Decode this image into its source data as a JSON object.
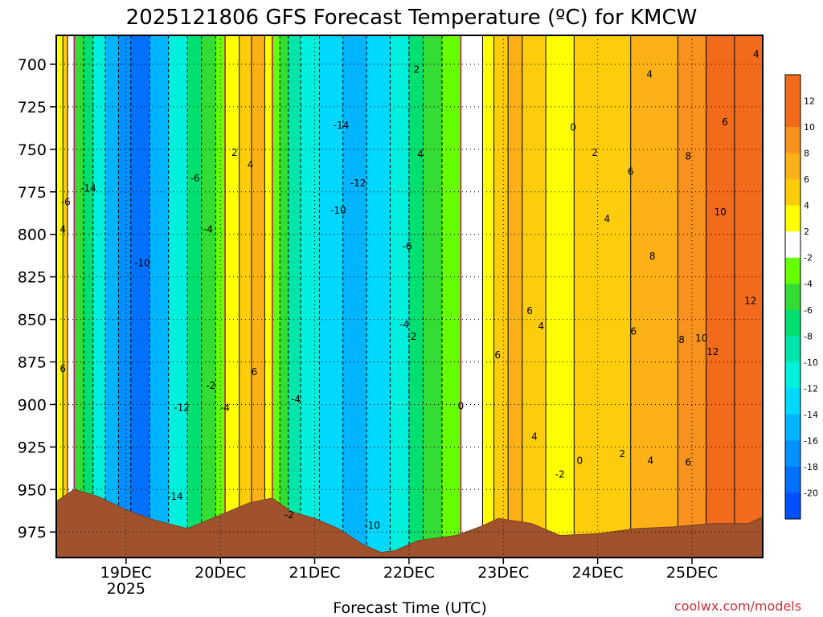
{
  "chart_data": {
    "type": "heatmap",
    "title": "2025121806 GFS Forecast Temperature (ºC) for KMCW",
    "xlabel": "Forecast Time (UTC)",
    "ylabel": "",
    "credit": "coolwx.com/models",
    "y_axis": {
      "reversed": true,
      "ylim": [
        990,
        683
      ],
      "ticks": [
        700,
        725,
        750,
        775,
        800,
        825,
        850,
        875,
        900,
        925,
        950,
        975
      ]
    },
    "x_axis": {
      "xlim": [
        18.26,
        25.75
      ],
      "ticks": [
        {
          "value": 19,
          "label": "19DEC",
          "sublabel": "2025"
        },
        {
          "value": 20,
          "label": "20DEC",
          "sublabel": ""
        },
        {
          "value": 21,
          "label": "21DEC",
          "sublabel": ""
        },
        {
          "value": 22,
          "label": "22DEC",
          "sublabel": ""
        },
        {
          "value": 23,
          "label": "23DEC",
          "sublabel": ""
        },
        {
          "value": 24,
          "label": "24DEC",
          "sublabel": ""
        },
        {
          "value": 25,
          "label": "25DEC",
          "sublabel": ""
        }
      ]
    },
    "grid": true,
    "colorbar": {
      "placement": "right",
      "bins": [
        {
          "label": "12",
          "color": "#f26b1d"
        },
        {
          "label": "10",
          "color": "#f7921e"
        },
        {
          "label": "8",
          "color": "#fcb116"
        },
        {
          "label": "6",
          "color": "#fdcc0b"
        },
        {
          "label": "4",
          "color": "#ffff00"
        },
        {
          "label": "2",
          "color": "#ffffff"
        },
        {
          "label": "-2",
          "color": "#66ff00"
        },
        {
          "label": "-4",
          "color": "#33dd33"
        },
        {
          "label": "-6",
          "color": "#00e070"
        },
        {
          "label": "-8",
          "color": "#00e5aa"
        },
        {
          "label": "-10",
          "color": "#00f0dd"
        },
        {
          "label": "-12",
          "color": "#00d8ff"
        },
        {
          "label": "-14",
          "color": "#00b4ff"
        },
        {
          "label": "-16",
          "color": "#0090ff"
        },
        {
          "label": "-18",
          "color": "#0070ff"
        },
        {
          "label": "-20",
          "color": ""
        }
      ],
      "top_color": "#f26b1d",
      "bottom_color": "#0050ff"
    },
    "terrain_surface_hpa": [
      {
        "x": 18.26,
        "p": 957
      },
      {
        "x": 18.45,
        "p": 950
      },
      {
        "x": 18.7,
        "p": 954
      },
      {
        "x": 19.0,
        "p": 962
      },
      {
        "x": 19.3,
        "p": 968
      },
      {
        "x": 19.65,
        "p": 973
      },
      {
        "x": 20.0,
        "p": 965
      },
      {
        "x": 20.3,
        "p": 958
      },
      {
        "x": 20.55,
        "p": 955
      },
      {
        "x": 20.75,
        "p": 963
      },
      {
        "x": 21.0,
        "p": 967
      },
      {
        "x": 21.25,
        "p": 973
      },
      {
        "x": 21.5,
        "p": 982
      },
      {
        "x": 21.7,
        "p": 987
      },
      {
        "x": 21.85,
        "p": 986
      },
      {
        "x": 22.1,
        "p": 980
      },
      {
        "x": 22.5,
        "p": 977
      },
      {
        "x": 22.75,
        "p": 972
      },
      {
        "x": 22.95,
        "p": 967
      },
      {
        "x": 23.3,
        "p": 970
      },
      {
        "x": 23.6,
        "p": 977
      },
      {
        "x": 24.0,
        "p": 976
      },
      {
        "x": 24.4,
        "p": 973
      },
      {
        "x": 24.8,
        "p": 972
      },
      {
        "x": 25.2,
        "p": 970
      },
      {
        "x": 25.6,
        "p": 970
      },
      {
        "x": 25.75,
        "p": 966
      }
    ],
    "temperature_bands": [
      {
        "x": 18.26,
        "v": 4
      },
      {
        "x": 18.33,
        "v": 6
      },
      {
        "x": 18.38,
        "v": 2
      },
      {
        "x": 18.45,
        "v": -4
      },
      {
        "x": 18.55,
        "v": -6
      },
      {
        "x": 18.65,
        "v": -10
      },
      {
        "x": 18.78,
        "v": -14
      },
      {
        "x": 18.92,
        "v": -16
      },
      {
        "x": 19.05,
        "v": -18
      },
      {
        "x": 19.25,
        "v": -14
      },
      {
        "x": 19.45,
        "v": -10
      },
      {
        "x": 19.65,
        "v": -6
      },
      {
        "x": 19.8,
        "v": -4
      },
      {
        "x": 19.95,
        "v": -2
      },
      {
        "x": 20.05,
        "v": 4
      },
      {
        "x": 20.2,
        "v": 6
      },
      {
        "x": 20.33,
        "v": 8
      },
      {
        "x": 20.47,
        "v": 4
      },
      {
        "x": 20.55,
        "v": -2
      },
      {
        "x": 20.63,
        "v": -4
      },
      {
        "x": 20.72,
        "v": -8
      },
      {
        "x": 20.85,
        "v": -10
      },
      {
        "x": 21.05,
        "v": -12
      },
      {
        "x": 21.3,
        "v": -14
      },
      {
        "x": 21.55,
        "v": -12
      },
      {
        "x": 21.8,
        "v": -10
      },
      {
        "x": 22.0,
        "v": -6
      },
      {
        "x": 22.15,
        "v": -4
      },
      {
        "x": 22.35,
        "v": -2
      },
      {
        "x": 22.55,
        "v": 2
      },
      {
        "x": 22.78,
        "v": 4
      },
      {
        "x": 22.9,
        "v": 6
      },
      {
        "x": 23.05,
        "v": 8
      },
      {
        "x": 23.2,
        "v": 6
      },
      {
        "x": 23.45,
        "v": 4
      },
      {
        "x": 23.75,
        "v": 6
      },
      {
        "x": 24.35,
        "v": 8
      },
      {
        "x": 24.85,
        "v": 10
      },
      {
        "x": 25.15,
        "v": 12
      },
      {
        "x": 25.45,
        "v": 12
      },
      {
        "x": 25.75,
        "v": 10
      }
    ],
    "contour_labels": [
      {
        "text": "2",
        "x": 22.08,
        "p": 703
      },
      {
        "text": "0",
        "x": 23.74,
        "p": 737
      },
      {
        "text": "-14",
        "x": 21.28,
        "p": 736
      },
      {
        "text": "4",
        "x": 22.12,
        "p": 753
      },
      {
        "text": "2",
        "x": 23.97,
        "p": 752
      },
      {
        "text": "4",
        "x": 24.55,
        "p": 706
      },
      {
        "text": "4",
        "x": 25.68,
        "p": 694
      },
      {
        "text": "6",
        "x": 25.35,
        "p": 734
      },
      {
        "text": "8",
        "x": 24.96,
        "p": 754
      },
      {
        "text": "6",
        "x": 24.35,
        "p": 763
      },
      {
        "text": "2",
        "x": 20.15,
        "p": 752
      },
      {
        "text": "4",
        "x": 20.32,
        "p": 759
      },
      {
        "text": "-6",
        "x": 19.73,
        "p": 767
      },
      {
        "text": "-12",
        "x": 21.46,
        "p": 770
      },
      {
        "text": "-14",
        "x": 18.6,
        "p": 773
      },
      {
        "text": "-6",
        "x": 18.36,
        "p": 781
      },
      {
        "text": "-10",
        "x": 21.25,
        "p": 786
      },
      {
        "text": "4",
        "x": 24.1,
        "p": 791
      },
      {
        "text": "10",
        "x": 25.3,
        "p": 787
      },
      {
        "text": "-4",
        "x": 19.87,
        "p": 797
      },
      {
        "text": "4",
        "x": 18.33,
        "p": 797
      },
      {
        "text": "-6",
        "x": 21.98,
        "p": 807
      },
      {
        "text": "-10",
        "x": 19.17,
        "p": 817
      },
      {
        "text": "8",
        "x": 24.58,
        "p": 813
      },
      {
        "text": "12",
        "x": 25.62,
        "p": 839
      },
      {
        "text": "6",
        "x": 23.28,
        "p": 845
      },
      {
        "text": "4",
        "x": 23.4,
        "p": 854
      },
      {
        "text": "-4",
        "x": 21.95,
        "p": 853
      },
      {
        "text": "-2",
        "x": 22.03,
        "p": 860
      },
      {
        "text": "6",
        "x": 24.38,
        "p": 857
      },
      {
        "text": "8",
        "x": 24.89,
        "p": 862
      },
      {
        "text": "10",
        "x": 25.1,
        "p": 861
      },
      {
        "text": "12",
        "x": 25.22,
        "p": 869
      },
      {
        "text": "6",
        "x": 22.94,
        "p": 871
      },
      {
        "text": "6",
        "x": 18.33,
        "p": 879
      },
      {
        "text": "6",
        "x": 20.36,
        "p": 881
      },
      {
        "text": "-2",
        "x": 19.9,
        "p": 889
      },
      {
        "text": "-4",
        "x": 20.05,
        "p": 902
      },
      {
        "text": "-4",
        "x": 20.8,
        "p": 897
      },
      {
        "text": "-12",
        "x": 19.59,
        "p": 902
      },
      {
        "text": "0",
        "x": 22.55,
        "p": 901
      },
      {
        "text": "4",
        "x": 23.33,
        "p": 919
      },
      {
        "text": "2",
        "x": 24.26,
        "p": 929
      },
      {
        "text": "4",
        "x": 24.56,
        "p": 933
      },
      {
        "text": "6",
        "x": 24.96,
        "p": 934
      },
      {
        "text": "0",
        "x": 23.81,
        "p": 933
      },
      {
        "text": "-2",
        "x": 23.6,
        "p": 941
      },
      {
        "text": "-14",
        "x": 19.52,
        "p": 954
      },
      {
        "text": "-2",
        "x": 20.73,
        "p": 965
      },
      {
        "text": "-10",
        "x": 21.61,
        "p": 971
      }
    ]
  }
}
